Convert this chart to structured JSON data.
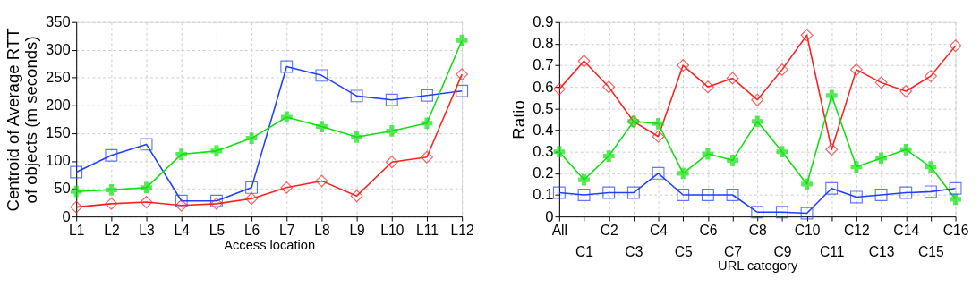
{
  "chart_data": [
    {
      "type": "line",
      "xlabel": "Access location",
      "ylabel": "Centroid of Average RTT\nof objects (m seconds)",
      "categories": [
        "L1",
        "L2",
        "L3",
        "L4",
        "L5",
        "L6",
        "L7",
        "L8",
        "L9",
        "L10",
        "L11",
        "L12"
      ],
      "ylim": [
        0,
        350
      ],
      "yticks": [
        0,
        50,
        100,
        150,
        200,
        250,
        300,
        350
      ],
      "grid": true,
      "legend": false,
      "series": [
        {
          "color": "#2040ff",
          "marker": "square",
          "values": [
            80,
            110,
            130,
            28,
            28,
            52,
            270,
            254,
            217,
            210,
            218,
            226
          ]
        },
        {
          "color": "#10e010",
          "marker": "cross",
          "values": [
            45,
            48,
            52,
            112,
            118,
            141,
            179,
            162,
            143,
            154,
            168,
            317
          ]
        },
        {
          "color": "#ff2020",
          "marker": "diamond",
          "values": [
            17,
            23,
            26,
            20,
            23,
            32,
            52,
            64,
            37,
            98,
            107,
            256
          ]
        }
      ]
    },
    {
      "type": "line",
      "xlabel": "URL category",
      "ylabel": "Ratio",
      "categories": [
        "All",
        "C1",
        "C2",
        "C3",
        "C4",
        "C5",
        "C6",
        "C7",
        "C8",
        "C9",
        "C10",
        "C11",
        "C12",
        "C13",
        "C14",
        "C15",
        "C16"
      ],
      "ylim": [
        0,
        0.9
      ],
      "yticks": [
        0,
        0.1,
        0.2,
        0.3,
        0.4,
        0.5,
        0.6,
        0.7,
        0.8,
        0.9
      ],
      "grid": true,
      "legend": false,
      "series": [
        {
          "color": "#ff2020",
          "marker": "diamond",
          "values": [
            0.59,
            0.72,
            0.6,
            0.44,
            0.37,
            0.7,
            0.6,
            0.64,
            0.54,
            0.68,
            0.84,
            0.31,
            0.68,
            0.62,
            0.58,
            0.65,
            0.79
          ]
        },
        {
          "color": "#10e010",
          "marker": "cross",
          "values": [
            0.3,
            0.17,
            0.28,
            0.44,
            0.43,
            0.2,
            0.29,
            0.26,
            0.44,
            0.3,
            0.15,
            0.56,
            0.23,
            0.27,
            0.31,
            0.23,
            0.08
          ]
        },
        {
          "color": "#2040ff",
          "marker": "square",
          "values": [
            0.11,
            0.1,
            0.11,
            0.11,
            0.2,
            0.1,
            0.1,
            0.1,
            0.02,
            0.02,
            0.015,
            0.13,
            0.09,
            0.1,
            0.11,
            0.115,
            0.13
          ]
        }
      ]
    }
  ]
}
